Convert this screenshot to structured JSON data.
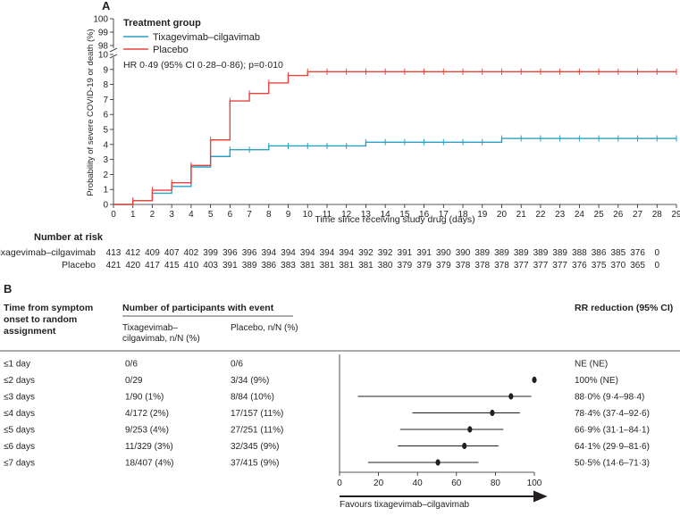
{
  "panel_a": {
    "label": "A",
    "legend_title": "Treatment group",
    "number_at_risk_title": "Number at risk",
    "hr_text": "HR 0·49 (95% CI 0·28–0·86); p=0·010"
  },
  "panel_b": {
    "label": "B",
    "col_onset": [
      "Time from symptom",
      "onset to random",
      "assignment"
    ],
    "col_participants": "Number of participants with event",
    "col_tix": [
      "Tixagevimab–",
      "cilgavimab, n/N (%)"
    ],
    "col_placebo": "Placebo, n/N (%)",
    "col_rr": "RR reduction (95% CI)",
    "favours": "Favours tixagevimab–cilgavimab"
  },
  "chart_data": [
    {
      "type": "line",
      "subtype": "kaplan-meier",
      "title": "",
      "xlabel": "Time since receiving study drug (days)",
      "ylabel": "Probability of severe COVID-19 or death (%)",
      "xlim": [
        0,
        29
      ],
      "ylim_lower": [
        0,
        10
      ],
      "ylim_upper": [
        98,
        100
      ],
      "x_ticks": [
        0,
        1,
        2,
        3,
        4,
        5,
        6,
        7,
        8,
        9,
        10,
        11,
        12,
        13,
        14,
        15,
        16,
        17,
        18,
        19,
        20,
        21,
        22,
        23,
        24,
        25,
        26,
        27,
        28,
        29
      ],
      "y_ticks_lower": [
        0,
        1,
        2,
        3,
        4,
        5,
        6,
        7,
        8,
        9,
        10
      ],
      "y_ticks_upper": [
        98,
        99,
        100
      ],
      "series": [
        {
          "name": "Tixagevimab–cilgavimab",
          "color": "#2aa0c4",
          "steps": [
            [
              0,
              0
            ],
            [
              1,
              0.25
            ],
            [
              2,
              0.75
            ],
            [
              3,
              1.2
            ],
            [
              4,
              2.5
            ],
            [
              5,
              3.2
            ],
            [
              6,
              3.65
            ],
            [
              8,
              3.9
            ],
            [
              13,
              4.15
            ],
            [
              20,
              4.4
            ],
            [
              29,
              4.4
            ]
          ],
          "censor_x": [
            1,
            2,
            3,
            4,
            5,
            6,
            7,
            8,
            9,
            10,
            11,
            12,
            13,
            14,
            15,
            16,
            17,
            18,
            19,
            20,
            21,
            22,
            23,
            24,
            25,
            26,
            27,
            28,
            29
          ],
          "at_risk": [
            "413",
            "412",
            "409",
            "407",
            "402",
            "399",
            "396",
            "396",
            "394",
            "394",
            "394",
            "394",
            "394",
            "392",
            "392",
            "391",
            "391",
            "390",
            "390",
            "389",
            "389",
            "389",
            "389",
            "389",
            "388",
            "386",
            "385",
            "376",
            "0"
          ]
        },
        {
          "name": "Placebo",
          "color": "#e8443a",
          "steps": [
            [
              0,
              0
            ],
            [
              1,
              0.25
            ],
            [
              2,
              0.95
            ],
            [
              3,
              1.45
            ],
            [
              4,
              2.6
            ],
            [
              5,
              4.3
            ],
            [
              6,
              6.9
            ],
            [
              7,
              7.4
            ],
            [
              8,
              8.1
            ],
            [
              9,
              8.6
            ],
            [
              10,
              8.85
            ],
            [
              29,
              8.85
            ]
          ],
          "censor_x": [
            1,
            2,
            3,
            4,
            5,
            6,
            7,
            8,
            9,
            10,
            11,
            12,
            13,
            14,
            15,
            16,
            17,
            18,
            19,
            20,
            21,
            22,
            23,
            24,
            25,
            26,
            27,
            28,
            29
          ],
          "at_risk": [
            "421",
            "420",
            "417",
            "415",
            "410",
            "403",
            "391",
            "389",
            "386",
            "383",
            "381",
            "381",
            "381",
            "381",
            "380",
            "379",
            "379",
            "379",
            "378",
            "378",
            "378",
            "377",
            "377",
            "377",
            "376",
            "375",
            "370",
            "365",
            "0"
          ]
        }
      ]
    },
    {
      "type": "scatter",
      "subtype": "forest-plot",
      "xlabel": "",
      "xlim": [
        0,
        100
      ],
      "x_ticks": [
        0,
        20,
        40,
        60,
        80,
        100
      ],
      "rows": [
        {
          "label": "≤1 day",
          "tix": "0/6",
          "placebo": "0/6",
          "rr_text": "NE (NE)",
          "estimate": null,
          "lower": null,
          "upper": null
        },
        {
          "label": "≤2 days",
          "tix": "0/29",
          "placebo": "3/34 (9%)",
          "rr_text": "100% (NE)",
          "estimate": 100,
          "lower": null,
          "upper": null
        },
        {
          "label": "≤3 days",
          "tix": "1/90 (1%)",
          "placebo": "8/84 (10%)",
          "rr_text": "88·0% (9·4–98·4)",
          "estimate": 88.0,
          "lower": 9.4,
          "upper": 98.4
        },
        {
          "label": "≤4 days",
          "tix": "4/172 (2%)",
          "placebo": "17/157 (11%)",
          "rr_text": "78·4% (37·4–92·6)",
          "estimate": 78.4,
          "lower": 37.4,
          "upper": 92.6
        },
        {
          "label": "≤5 days",
          "tix": "9/253 (4%)",
          "placebo": "27/251 (11%)",
          "rr_text": "66·9% (31·1–84·1)",
          "estimate": 66.9,
          "lower": 31.1,
          "upper": 84.1
        },
        {
          "label": "≤6 days",
          "tix": "11/329 (3%)",
          "placebo": "32/345 (9%)",
          "rr_text": "64·1% (29·9–81·6)",
          "estimate": 64.1,
          "lower": 29.9,
          "upper": 81.6
        },
        {
          "label": "≤7 days",
          "tix": "18/407 (4%)",
          "placebo": "37/415 (9%)",
          "rr_text": "50·5% (14·6–71·3)",
          "estimate": 50.5,
          "lower": 14.6,
          "upper": 71.3
        }
      ]
    }
  ]
}
